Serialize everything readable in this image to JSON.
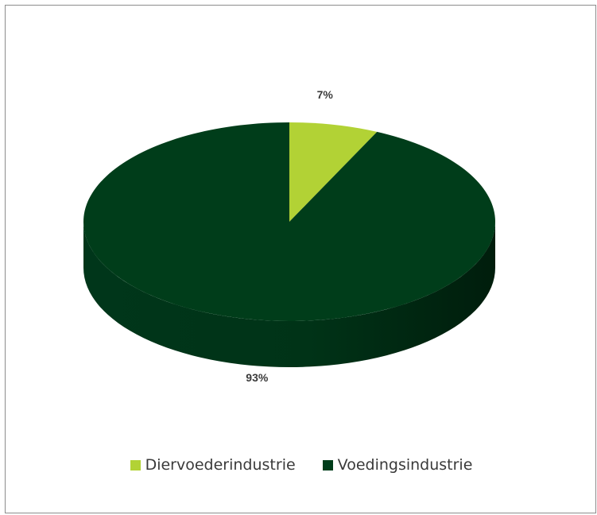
{
  "chart_data": {
    "type": "pie",
    "title": "",
    "categories": [
      "Diervoederindustrie",
      "Voedingsindustrie"
    ],
    "values": [
      7,
      93
    ],
    "unit": "%",
    "labels": [
      "7%",
      "93%"
    ],
    "colors": [
      "#b2d235",
      "#003d1a"
    ],
    "style": "3d",
    "legend_position": "bottom"
  },
  "legend": {
    "items": [
      {
        "label": "Diervoederindustrie",
        "color": "#b2d235"
      },
      {
        "label": "Voedingsindustrie",
        "color": "#003d1a"
      }
    ]
  }
}
